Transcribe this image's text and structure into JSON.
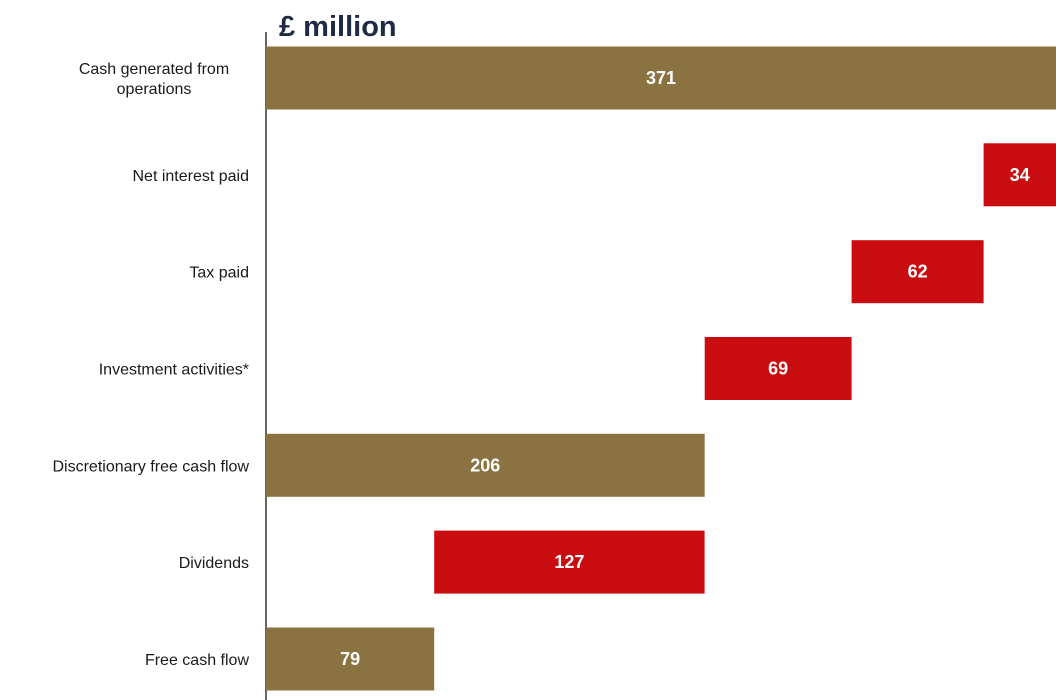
{
  "chart_data": {
    "type": "bar",
    "orientation": "horizontal",
    "variant": "waterfall",
    "unit_label": "£ million",
    "xlim": [
      0,
      371
    ],
    "grid": false,
    "legend": "none",
    "categories": [
      "Cash generated from operations",
      "Net interest paid",
      "Tax paid",
      "Investment activities*",
      "Discretionary free cash flow",
      "Dividends",
      "Free cash flow"
    ],
    "category_lines": [
      [
        "Cash generated from",
        "operations"
      ],
      [
        "Net interest paid"
      ],
      [
        "Tax paid"
      ],
      [
        "Investment activities*"
      ],
      [
        "Discretionary free cash flow"
      ],
      [
        "Dividends"
      ],
      [
        "Free cash flow"
      ]
    ],
    "values": [
      371,
      -34,
      -62,
      -69,
      206,
      -127,
      79
    ],
    "bar_kinds": [
      "total",
      "decrease",
      "decrease",
      "decrease",
      "total",
      "decrease",
      "total"
    ],
    "data_labels": [
      "371",
      "34",
      "62",
      "69",
      "206",
      "127",
      "79"
    ],
    "colors": {
      "total": "#8b7241",
      "decrease": "#c90c0f"
    }
  }
}
